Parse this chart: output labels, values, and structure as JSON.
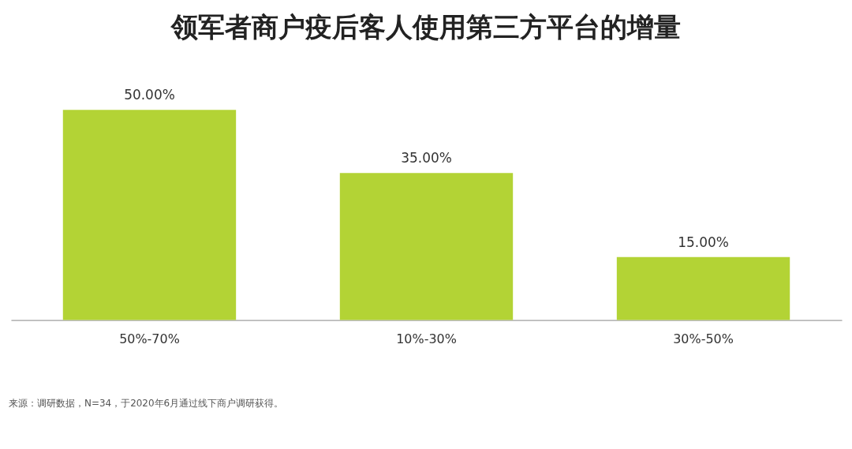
{
  "chart_data": {
    "type": "bar",
    "title": "领军者商户疫后客人使用第三方平台的增量",
    "categories": [
      "50%-70%",
      "10%-30%",
      "30%-50%"
    ],
    "values": [
      50,
      35,
      15
    ],
    "value_labels": [
      "50.00%",
      "35.00%",
      "15.00%"
    ],
    "color": "#b3d335",
    "grid": false,
    "annotations": [
      "来源：调研数据，N=34，于2020年6月通过线下商户调研获得。"
    ]
  }
}
